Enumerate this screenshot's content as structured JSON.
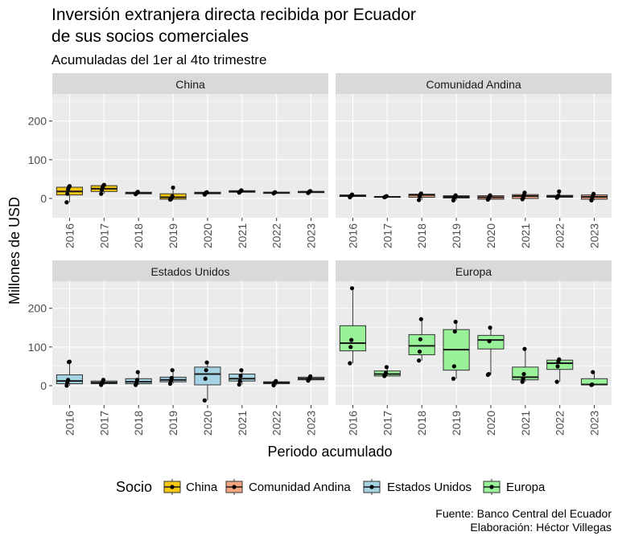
{
  "title_line1": "Inversión extranjera directa recibida por Ecuador",
  "title_line2": "de sus socios comerciales",
  "subtitle": "Acumuladas del 1er al 4to trimestre",
  "caption_line1": "Fuente: Banco Central del Ecuador",
  "caption_line2": "Elaboración: Héctor Villegas",
  "colors": {
    "China": "#F5C710",
    "Comunidad Andina": "#F4A582",
    "Estados Unidos": "#A6D3E3",
    "Europa": "#99F299",
    "panel_bg": "#EBEBEB",
    "strip_bg": "#D9D9D9",
    "grid": "#FFFFFF"
  },
  "chart_data": {
    "type": "boxplot",
    "layout": "facet_wrap 2x2",
    "xlabel": "Periodo acumulado",
    "ylabel": "Millones de USD",
    "ylim": [
      -50,
      270
    ],
    "yticks": [
      0,
      100,
      200
    ],
    "categories": [
      "2016",
      "2017",
      "2018",
      "2019",
      "2020",
      "2021",
      "2022",
      "2023"
    ],
    "legend": {
      "title": "Socio",
      "position": "bottom",
      "items": [
        "China",
        "Comunidad Andina",
        "Estados Unidos",
        "Europa"
      ]
    },
    "panels": [
      {
        "name": "China",
        "boxes": [
          {
            "x": "2016",
            "q1": 9,
            "median": 18,
            "q3": 29,
            "lo": -10,
            "hi": 32,
            "points": [
              -10,
              12,
              24,
              29,
              32
            ]
          },
          {
            "x": "2017",
            "q1": 18,
            "median": 25,
            "q3": 33,
            "lo": 12,
            "hi": 35,
            "points": [
              12,
              22,
              29,
              33,
              35
            ]
          },
          {
            "x": "2018",
            "q1": 12,
            "median": 14,
            "q3": 16,
            "lo": 11,
            "hi": 18,
            "points": [
              11,
              13,
              15,
              17
            ]
          },
          {
            "x": "2019",
            "q1": -2,
            "median": 3,
            "q3": 12,
            "lo": -3,
            "hi": 28,
            "points": [
              -3,
              -2,
              1,
              6,
              28
            ]
          },
          {
            "x": "2020",
            "q1": 12,
            "median": 14,
            "q3": 16,
            "lo": 10,
            "hi": 17,
            "points": [
              10,
              13,
              15,
              16
            ]
          },
          {
            "x": "2021",
            "q1": 16,
            "median": 18,
            "q3": 20,
            "lo": 15,
            "hi": 21,
            "points": [
              15,
              17,
              19,
              21
            ]
          },
          {
            "x": "2022",
            "q1": 13,
            "median": 15,
            "q3": 16,
            "lo": 13,
            "hi": 17,
            "points": [
              13,
              15,
              16
            ]
          },
          {
            "x": "2023",
            "q1": 15,
            "median": 17,
            "q3": 18,
            "lo": 14,
            "hi": 19,
            "points": [
              14,
              16,
              18,
              19
            ]
          }
        ]
      },
      {
        "name": "Comunidad Andina",
        "boxes": [
          {
            "x": "2016",
            "q1": 5,
            "median": 7,
            "q3": 9,
            "lo": 3,
            "hi": 10,
            "points": [
              3,
              6,
              8,
              10
            ]
          },
          {
            "x": "2017",
            "q1": 3,
            "median": 4,
            "q3": 5,
            "lo": 3,
            "hi": 6,
            "points": [
              3,
              4,
              5,
              6
            ]
          },
          {
            "x": "2018",
            "q1": 3,
            "median": 9,
            "q3": 11,
            "lo": -4,
            "hi": 13,
            "points": [
              -4,
              5,
              10,
              13
            ]
          },
          {
            "x": "2019",
            "q1": 1,
            "median": 4,
            "q3": 7,
            "lo": -5,
            "hi": 8,
            "points": [
              -5,
              2,
              5,
              8
            ]
          },
          {
            "x": "2020",
            "q1": -2,
            "median": 3,
            "q3": 7,
            "lo": -3,
            "hi": 8,
            "points": [
              -3,
              0,
              5,
              8
            ]
          },
          {
            "x": "2021",
            "q1": 0,
            "median": 6,
            "q3": 10,
            "lo": -2,
            "hi": 15,
            "points": [
              -2,
              2,
              8,
              15
            ]
          },
          {
            "x": "2022",
            "q1": 3,
            "median": 5,
            "q3": 8,
            "lo": 2,
            "hi": 18,
            "points": [
              2,
              4,
              7,
              18
            ]
          },
          {
            "x": "2023",
            "q1": -2,
            "median": 4,
            "q3": 9,
            "lo": -5,
            "hi": 12,
            "points": [
              -5,
              2,
              7,
              12
            ]
          }
        ]
      },
      {
        "name": "Estados Unidos",
        "boxes": [
          {
            "x": "2016",
            "q1": 5,
            "median": 12,
            "q3": 28,
            "lo": 0,
            "hi": 62,
            "points": [
              0,
              8,
              15,
              61,
              62
            ]
          },
          {
            "x": "2017",
            "q1": 5,
            "median": 8,
            "q3": 12,
            "lo": 2,
            "hi": 15,
            "points": [
              2,
              7,
              10,
              15
            ]
          },
          {
            "x": "2018",
            "q1": 5,
            "median": 10,
            "q3": 18,
            "lo": 2,
            "hi": 35,
            "points": [
              2,
              6,
              15,
              35
            ]
          },
          {
            "x": "2019",
            "q1": 10,
            "median": 15,
            "q3": 22,
            "lo": 5,
            "hi": 40,
            "points": [
              5,
              13,
              20,
              40
            ]
          },
          {
            "x": "2020",
            "q1": 2,
            "median": 30,
            "q3": 48,
            "lo": -38,
            "hi": 60,
            "points": [
              -38,
              18,
              40,
              60
            ]
          },
          {
            "x": "2021",
            "q1": 12,
            "median": 18,
            "q3": 30,
            "lo": 3,
            "hi": 40,
            "points": [
              3,
              12,
              25,
              40
            ]
          },
          {
            "x": "2022",
            "q1": 5,
            "median": 8,
            "q3": 10,
            "lo": 1,
            "hi": 12,
            "points": [
              1,
              7,
              9,
              12
            ]
          },
          {
            "x": "2023",
            "q1": 15,
            "median": 18,
            "q3": 22,
            "lo": 13,
            "hi": 24,
            "points": [
              13,
              17,
              20,
              24
            ]
          }
        ]
      },
      {
        "name": "Europa",
        "boxes": [
          {
            "x": "2016",
            "q1": 90,
            "median": 110,
            "q3": 155,
            "lo": 58,
            "hi": 252,
            "points": [
              58,
              100,
              118,
              252
            ]
          },
          {
            "x": "2017",
            "q1": 25,
            "median": 30,
            "q3": 38,
            "lo": 25,
            "hi": 48,
            "points": [
              25,
              28,
              33,
              48
            ]
          },
          {
            "x": "2018",
            "q1": 80,
            "median": 103,
            "q3": 132,
            "lo": 65,
            "hi": 172,
            "points": [
              65,
              88,
              120,
              172
            ]
          },
          {
            "x": "2019",
            "q1": 40,
            "median": 93,
            "q3": 145,
            "lo": 18,
            "hi": 165,
            "points": [
              18,
              50,
              140,
              165
            ]
          },
          {
            "x": "2020",
            "q1": 95,
            "median": 118,
            "q3": 130,
            "lo": 28,
            "hi": 150,
            "points": [
              28,
              30,
              115,
              150
            ]
          },
          {
            "x": "2021",
            "q1": 15,
            "median": 22,
            "q3": 48,
            "lo": 10,
            "hi": 95,
            "points": [
              10,
              18,
              30,
              95
            ]
          },
          {
            "x": "2022",
            "q1": 42,
            "median": 58,
            "q3": 66,
            "lo": 10,
            "hi": 68,
            "points": [
              10,
              50,
              62,
              68
            ]
          },
          {
            "x": "2023",
            "q1": 2,
            "median": 3,
            "q3": 18,
            "lo": 2,
            "hi": 35,
            "points": [
              2,
              3,
              35
            ]
          }
        ]
      }
    ]
  }
}
